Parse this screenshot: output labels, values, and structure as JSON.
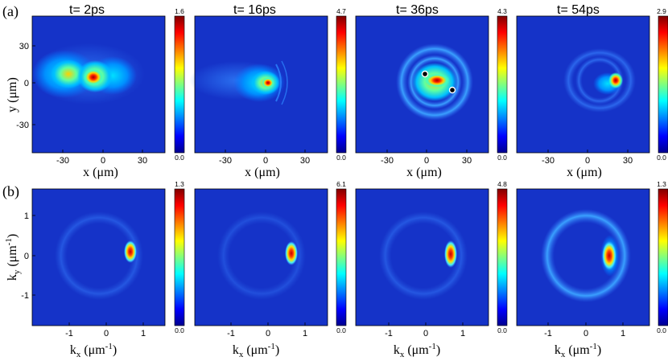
{
  "panel_labels": [
    "(a)",
    "(b)"
  ],
  "times": [
    "t= 2ps",
    "t= 16ps",
    "t= 36ps",
    "t= 54ps"
  ],
  "row_a": {
    "y_label": "y (μm)",
    "y_ticks": [
      "30",
      "0",
      "-30"
    ],
    "x_label": "x (μm)",
    "x_ticks": [
      "-30",
      "0",
      "30"
    ],
    "colorbar_max": [
      "1.6",
      "4.7",
      "4.3",
      "2.9"
    ],
    "colorbar_min": "0.0"
  },
  "row_b": {
    "y_label_main": "k",
    "y_label_sub": "y",
    "y_label_tail": " (μm",
    "y_label_sup": "-1",
    "y_ticks": [
      "1",
      "0",
      "-1"
    ],
    "x_label_main": "k",
    "x_label_sub": "x",
    "x_label_tail": " (μm",
    "x_label_sup": "-1",
    "x_ticks": [
      "-1",
      "0",
      "1"
    ],
    "colorbar_max": [
      "1.3",
      "6.1",
      "4.8",
      "1.3"
    ],
    "colorbar_min": "0.0"
  },
  "colors": {
    "map_background": "#1533c8",
    "jet": [
      "#00008f",
      "#0000ff",
      "#00ffff",
      "#ffff00",
      "#ff0000",
      "#800000"
    ]
  }
}
